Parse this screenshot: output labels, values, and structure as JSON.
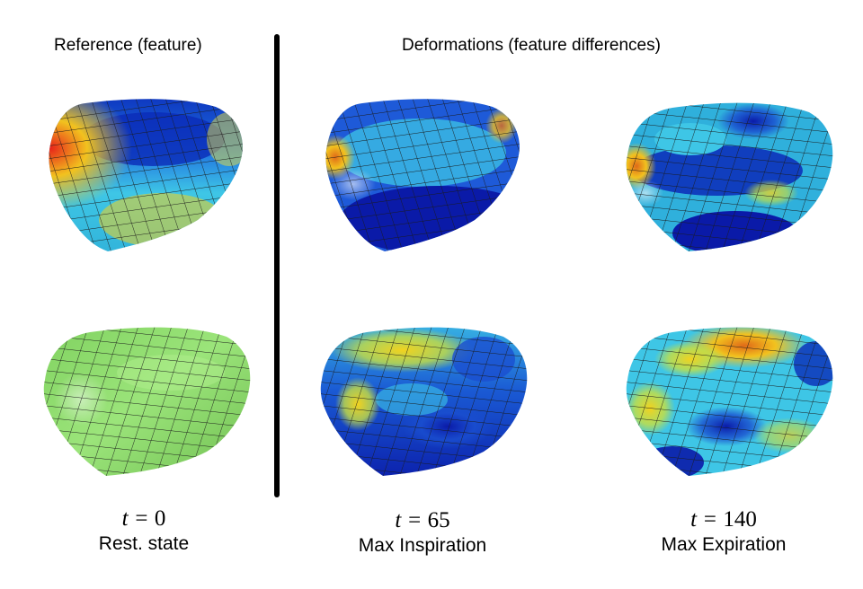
{
  "headings": {
    "reference": "Reference (feature)",
    "deformations": "Deformations (feature differences)"
  },
  "columns": [
    {
      "time_var": "t",
      "time_value": "0",
      "label": "Rest. state"
    },
    {
      "time_var": "t",
      "time_value": "65",
      "label": "Max Inspiration"
    },
    {
      "time_var": "t",
      "time_value": "140",
      "label": "Max Expiration"
    }
  ],
  "colors": {
    "colormap_low": "#0a1aa8",
    "colormap_mid": "#2fc0e6",
    "colormap_high": "#e8241a",
    "rest_mesh": "#8fdc6e",
    "mesh_lines": "#1a1a1a",
    "divider": "#000000"
  },
  "panels": [
    {
      "name": "reference-feature-mesh",
      "row": "top",
      "column": 0,
      "style": "heatmap"
    },
    {
      "name": "rest-state-mesh",
      "row": "bottom",
      "column": 0,
      "style": "green"
    },
    {
      "name": "inspiration-feature-diff-mesh",
      "row": "top",
      "column": 1,
      "style": "heatmap"
    },
    {
      "name": "inspiration-deformation-mesh",
      "row": "bottom",
      "column": 1,
      "style": "heatmap"
    },
    {
      "name": "expiration-feature-diff-mesh",
      "row": "top",
      "column": 2,
      "style": "heatmap"
    },
    {
      "name": "expiration-deformation-mesh",
      "row": "bottom",
      "column": 2,
      "style": "heatmap"
    }
  ]
}
